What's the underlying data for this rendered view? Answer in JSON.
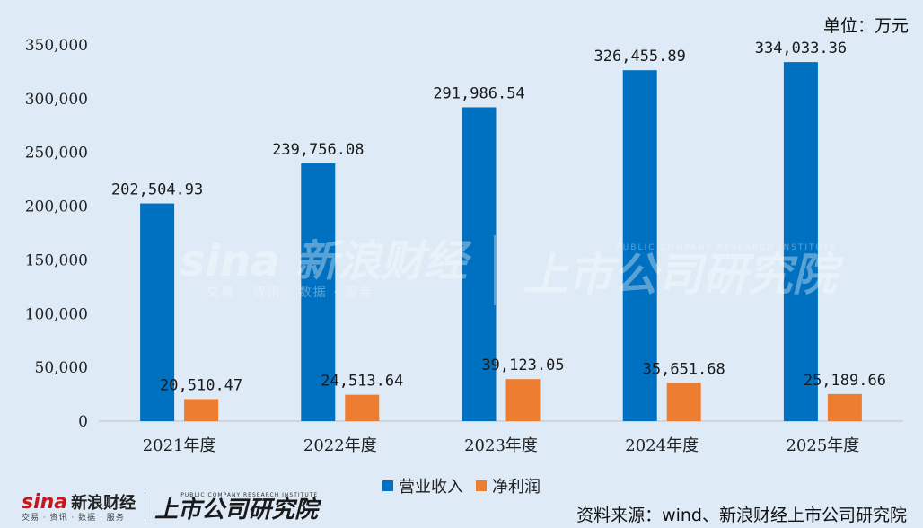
{
  "unit_label": "单位：万元",
  "source_text": "资料来源：wind、新浪财经上市公司研究院",
  "brand": {
    "sina_logo": "sina",
    "sina_name": "新浪财经",
    "sina_sub": "交易 · 资讯 · 数据 · 服务",
    "institute_name": "上市公司研究院",
    "institute_sub": "PUBLIC COMPANY RESEARCH INSTITUTE"
  },
  "colors": {
    "revenue": "#0070c0",
    "net_profit": "#ed7d31",
    "background": "#deebf7",
    "axis": "#bfbfbf"
  },
  "chart_data": {
    "type": "bar",
    "categories": [
      "2021年度",
      "2022年度",
      "2023年度",
      "2024年度",
      "2025年度"
    ],
    "series": [
      {
        "name": "营业收入",
        "values": [
          202504.93,
          239756.08,
          291986.54,
          326455.89,
          334033.36
        ],
        "labels": [
          "202,504.93",
          "239,756.08",
          "291,986.54",
          "326,455.89",
          "334,033.36"
        ]
      },
      {
        "name": "净利润",
        "values": [
          20510.47,
          24513.64,
          39123.05,
          35651.68,
          25189.66
        ],
        "labels": [
          "20,510.47",
          "24,513.64",
          "39,123.05",
          "35,651.68",
          "25,189.66"
        ]
      }
    ],
    "ylim": [
      0,
      350000
    ],
    "yticks": [
      0,
      50000,
      100000,
      150000,
      200000,
      250000,
      300000,
      350000
    ],
    "ytick_labels": [
      "0",
      "50,000",
      "100,000",
      "150,000",
      "200,000",
      "250,000",
      "300,000",
      "350,000"
    ],
    "grid": false,
    "legend_position": "bottom"
  }
}
